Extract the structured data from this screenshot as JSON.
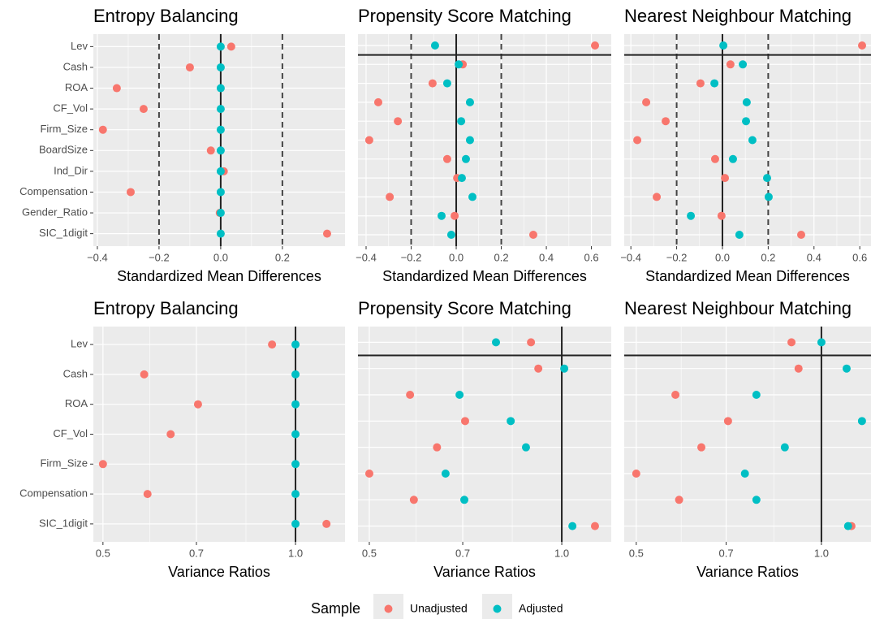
{
  "chart_data": [
    {
      "type": "dot",
      "title": "Entropy Balancing",
      "x_label": "Standardized Mean Differences",
      "categories": [
        "Lev",
        "Cash",
        "ROA",
        "CF_Vol",
        "Firm_Size",
        "BoardSize",
        "Ind_Dir",
        "Compensation",
        "Gender_Ratio",
        "SIC_1digit"
      ],
      "series": [
        {
          "name": "Unadjusted",
          "color": "#F8766D",
          "values": [
            0.034,
            -0.1,
            -0.337,
            -0.25,
            -0.382,
            -0.032,
            0.01,
            -0.292,
            -0.003,
            0.345
          ]
        },
        {
          "name": "Adjusted",
          "color": "#00BFC4",
          "values": [
            0,
            0,
            0,
            0,
            0,
            0,
            0,
            0,
            0,
            0
          ]
        }
      ],
      "xlim": [
        -0.413,
        0.403
      ],
      "xticks": [
        {
          "value": -0.4,
          "label": "−0.4"
        },
        {
          "value": -0.2,
          "label": "−0.2"
        },
        {
          "value": 0,
          "label": "0.0"
        },
        0.2
      ],
      "ref_line": 0,
      "threshold_lines": [
        -0.2,
        0.2
      ],
      "hline": false,
      "log_x": false,
      "grid": true
    },
    {
      "type": "dot",
      "title": "Propensity Score Matching",
      "x_label": "Standardized Mean Differences",
      "categories": [
        null,
        null,
        null,
        null,
        null,
        null,
        null,
        null,
        null,
        null,
        null
      ],
      "series": [
        {
          "name": "Unadjusted",
          "color": "#F8766D",
          "values": [
            0.616,
            0.029,
            -0.105,
            -0.346,
            -0.259,
            -0.386,
            -0.04,
            0.004,
            -0.295,
            -0.007,
            0.342
          ]
        },
        {
          "name": "Adjusted",
          "color": "#00BFC4",
          "values": [
            -0.094,
            0.011,
            -0.04,
            0.061,
            0.022,
            0.061,
            0.043,
            0.025,
            0.072,
            -0.065,
            -0.022
          ]
        }
      ],
      "xlim": [
        -0.436,
        0.688
      ],
      "xticks": [
        {
          "value": -0.4,
          "label": "−0.4"
        },
        {
          "value": -0.2,
          "label": "−0.2"
        },
        {
          "value": 0,
          "label": "0.0"
        },
        0.2,
        0.4,
        0.6
      ],
      "ref_line": 0,
      "threshold_lines": [
        -0.2,
        0.2
      ],
      "hline": true,
      "log_x": false,
      "grid": true
    },
    {
      "type": "dot",
      "title": "Nearest Neighbour Matching",
      "x_label": "Standardized Mean Differences",
      "categories": [
        null,
        null,
        null,
        null,
        null,
        null,
        null,
        null,
        null,
        null,
        null
      ],
      "series": [
        {
          "name": "Unadjusted",
          "color": "#F8766D",
          "values": [
            0.61,
            0.035,
            -0.096,
            -0.333,
            -0.248,
            -0.372,
            -0.032,
            0.011,
            -0.287,
            -0.004,
            0.344
          ]
        },
        {
          "name": "Adjusted",
          "color": "#00BFC4",
          "values": [
            0.004,
            0.089,
            -0.035,
            0.106,
            0.103,
            0.131,
            0.046,
            0.195,
            0.202,
            -0.138,
            0.074
          ]
        }
      ],
      "xlim": [
        -0.429,
        0.649
      ],
      "xticks": [
        {
          "value": -0.4,
          "label": "−0.4"
        },
        {
          "value": -0.2,
          "label": "−0.2"
        },
        {
          "value": 0,
          "label": "0.0"
        },
        0.2,
        0.4,
        0.6
      ],
      "ref_line": 0,
      "threshold_lines": [
        -0.2,
        0.2
      ],
      "hline": true,
      "log_x": false,
      "grid": true
    },
    {
      "type": "dot",
      "title": "Entropy Balancing",
      "x_label": "Variance Ratios",
      "categories": [
        "Lev",
        "Cash",
        "ROA",
        "CF_Vol",
        "Firm_Size",
        "Compensation",
        "SIC_1digit"
      ],
      "series": [
        {
          "name": "Unadjusted",
          "color": "#F8766D",
          "values": [
            0.919,
            0.58,
            0.704,
            0.638,
            0.5,
            0.587,
            1.118
          ]
        },
        {
          "name": "Adjusted",
          "color": "#00BFC4",
          "values": [
            1,
            1,
            1,
            1,
            1,
            1,
            1
          ]
        }
      ],
      "xlim": [
        0.483,
        1.195
      ],
      "xticks": [
        0.5,
        0.7,
        {
          "value": 1,
          "label": "1.0"
        }
      ],
      "ref_line": 1,
      "threshold_lines": [],
      "hline": false,
      "log_x": true,
      "grid": true
    },
    {
      "type": "dot",
      "title": "Propensity Score Matching",
      "x_label": "Variance Ratios",
      "categories": [
        null,
        null,
        null,
        null,
        null,
        null,
        null,
        null
      ],
      "series": [
        {
          "name": "Unadjusted",
          "color": "#F8766D",
          "values": [
            0.895,
            0.919,
            0.579,
            0.706,
            0.638,
            0.5,
            0.587,
            1.127
          ]
        },
        {
          "name": "Adjusted",
          "color": "#00BFC4",
          "values": [
            0.789,
            1.009,
            0.692,
            0.832,
            0.879,
            0.658,
            0.704,
            1.039
          ]
        }
      ],
      "xlim": [
        0.48,
        1.195
      ],
      "xticks": [
        0.5,
        0.7,
        {
          "value": 1,
          "label": "1.0"
        }
      ],
      "ref_line": 1,
      "threshold_lines": [],
      "hline": true,
      "log_x": true,
      "grid": true
    },
    {
      "type": "dot",
      "title": "Nearest Neighbour Matching",
      "x_label": "Variance Ratios",
      "categories": [
        null,
        null,
        null,
        null,
        null,
        null,
        null,
        null
      ],
      "series": [
        {
          "name": "Unadjusted",
          "color": "#F8766D",
          "values": [
            0.894,
            0.918,
            0.579,
            0.705,
            0.638,
            0.5,
            0.587,
            1.119
          ]
        },
        {
          "name": "Adjusted",
          "color": "#00BFC4",
          "values": [
            1,
            1.099,
            0.784,
            1.164,
            0.872,
            0.751,
            0.784,
            1.105
          ]
        }
      ],
      "xlim": [
        0.478,
        1.204
      ],
      "xticks": [
        0.5,
        0.7,
        {
          "value": 1,
          "label": "1.0"
        }
      ],
      "ref_line": 1,
      "threshold_lines": [],
      "hline": true,
      "log_x": true,
      "grid": true
    }
  ],
  "legend": {
    "title": "Sample"
  }
}
